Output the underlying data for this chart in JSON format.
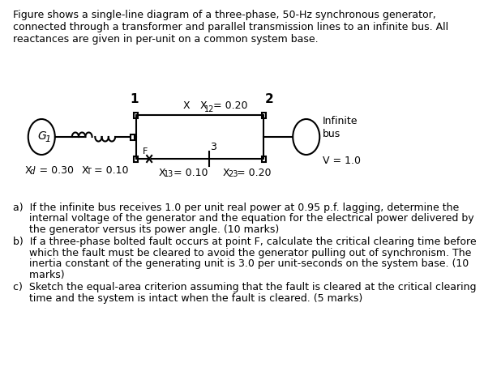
{
  "title_text": "Figure shows a single-line diagram of a three-phase, 50-Hz synchronous generator,\nconnected through a transformer and parallel transmission lines to an infinite bus. All\nreactances are given in per-unit on a common system base.",
  "bg_color": "#ffffff",
  "text_color": "#000000",
  "font_size": 9.0,
  "diagram": {
    "bus1_label": "1",
    "bus2_label": "2",
    "bus3_label": "3",
    "X12_label": "X",
    "X12_sub": "12",
    "X12_val": " = 0.20",
    "X13_label": "X",
    "X13_sub": "13",
    "X13_val": " = 0.10",
    "X23_label": "X",
    "X23_sub": "23",
    "X23_val": " = 0.20",
    "Xd_label": "X",
    "Xd_sub": "d",
    "Xd_val": "' = 0.30",
    "XT_label": "X",
    "XT_sub": "T",
    "XT_val": " = 0.10",
    "G1_label": "G",
    "G1_sub": "1",
    "V_label": "V = 1.0",
    "infinite_bus_label": "Infinite\nbus",
    "F_label": "F"
  },
  "qa": "a)  If the infinite bus receives 1.0 per unit real power at 0.95 p.f. lagging, determine the\n     internal voltage of the generator and the equation for the electrical power delivered by\n     the generator versus its power angle. (10 marks)",
  "qb": "b)  If a three-phase bolted fault occurs at point F, calculate the critical clearing time before\n     which the fault must be cleared to avoid the generator pulling out of synchronism. The\n     inertia constant of the generating unit is 3.0 per unit-seconds on the system base. (10\n     marks)",
  "qc": "c)  Sketch the equal-area criterion assuming that the fault is cleared at the critical clearing\n     time and the system is intact when the fault is cleared. (5 marks)"
}
